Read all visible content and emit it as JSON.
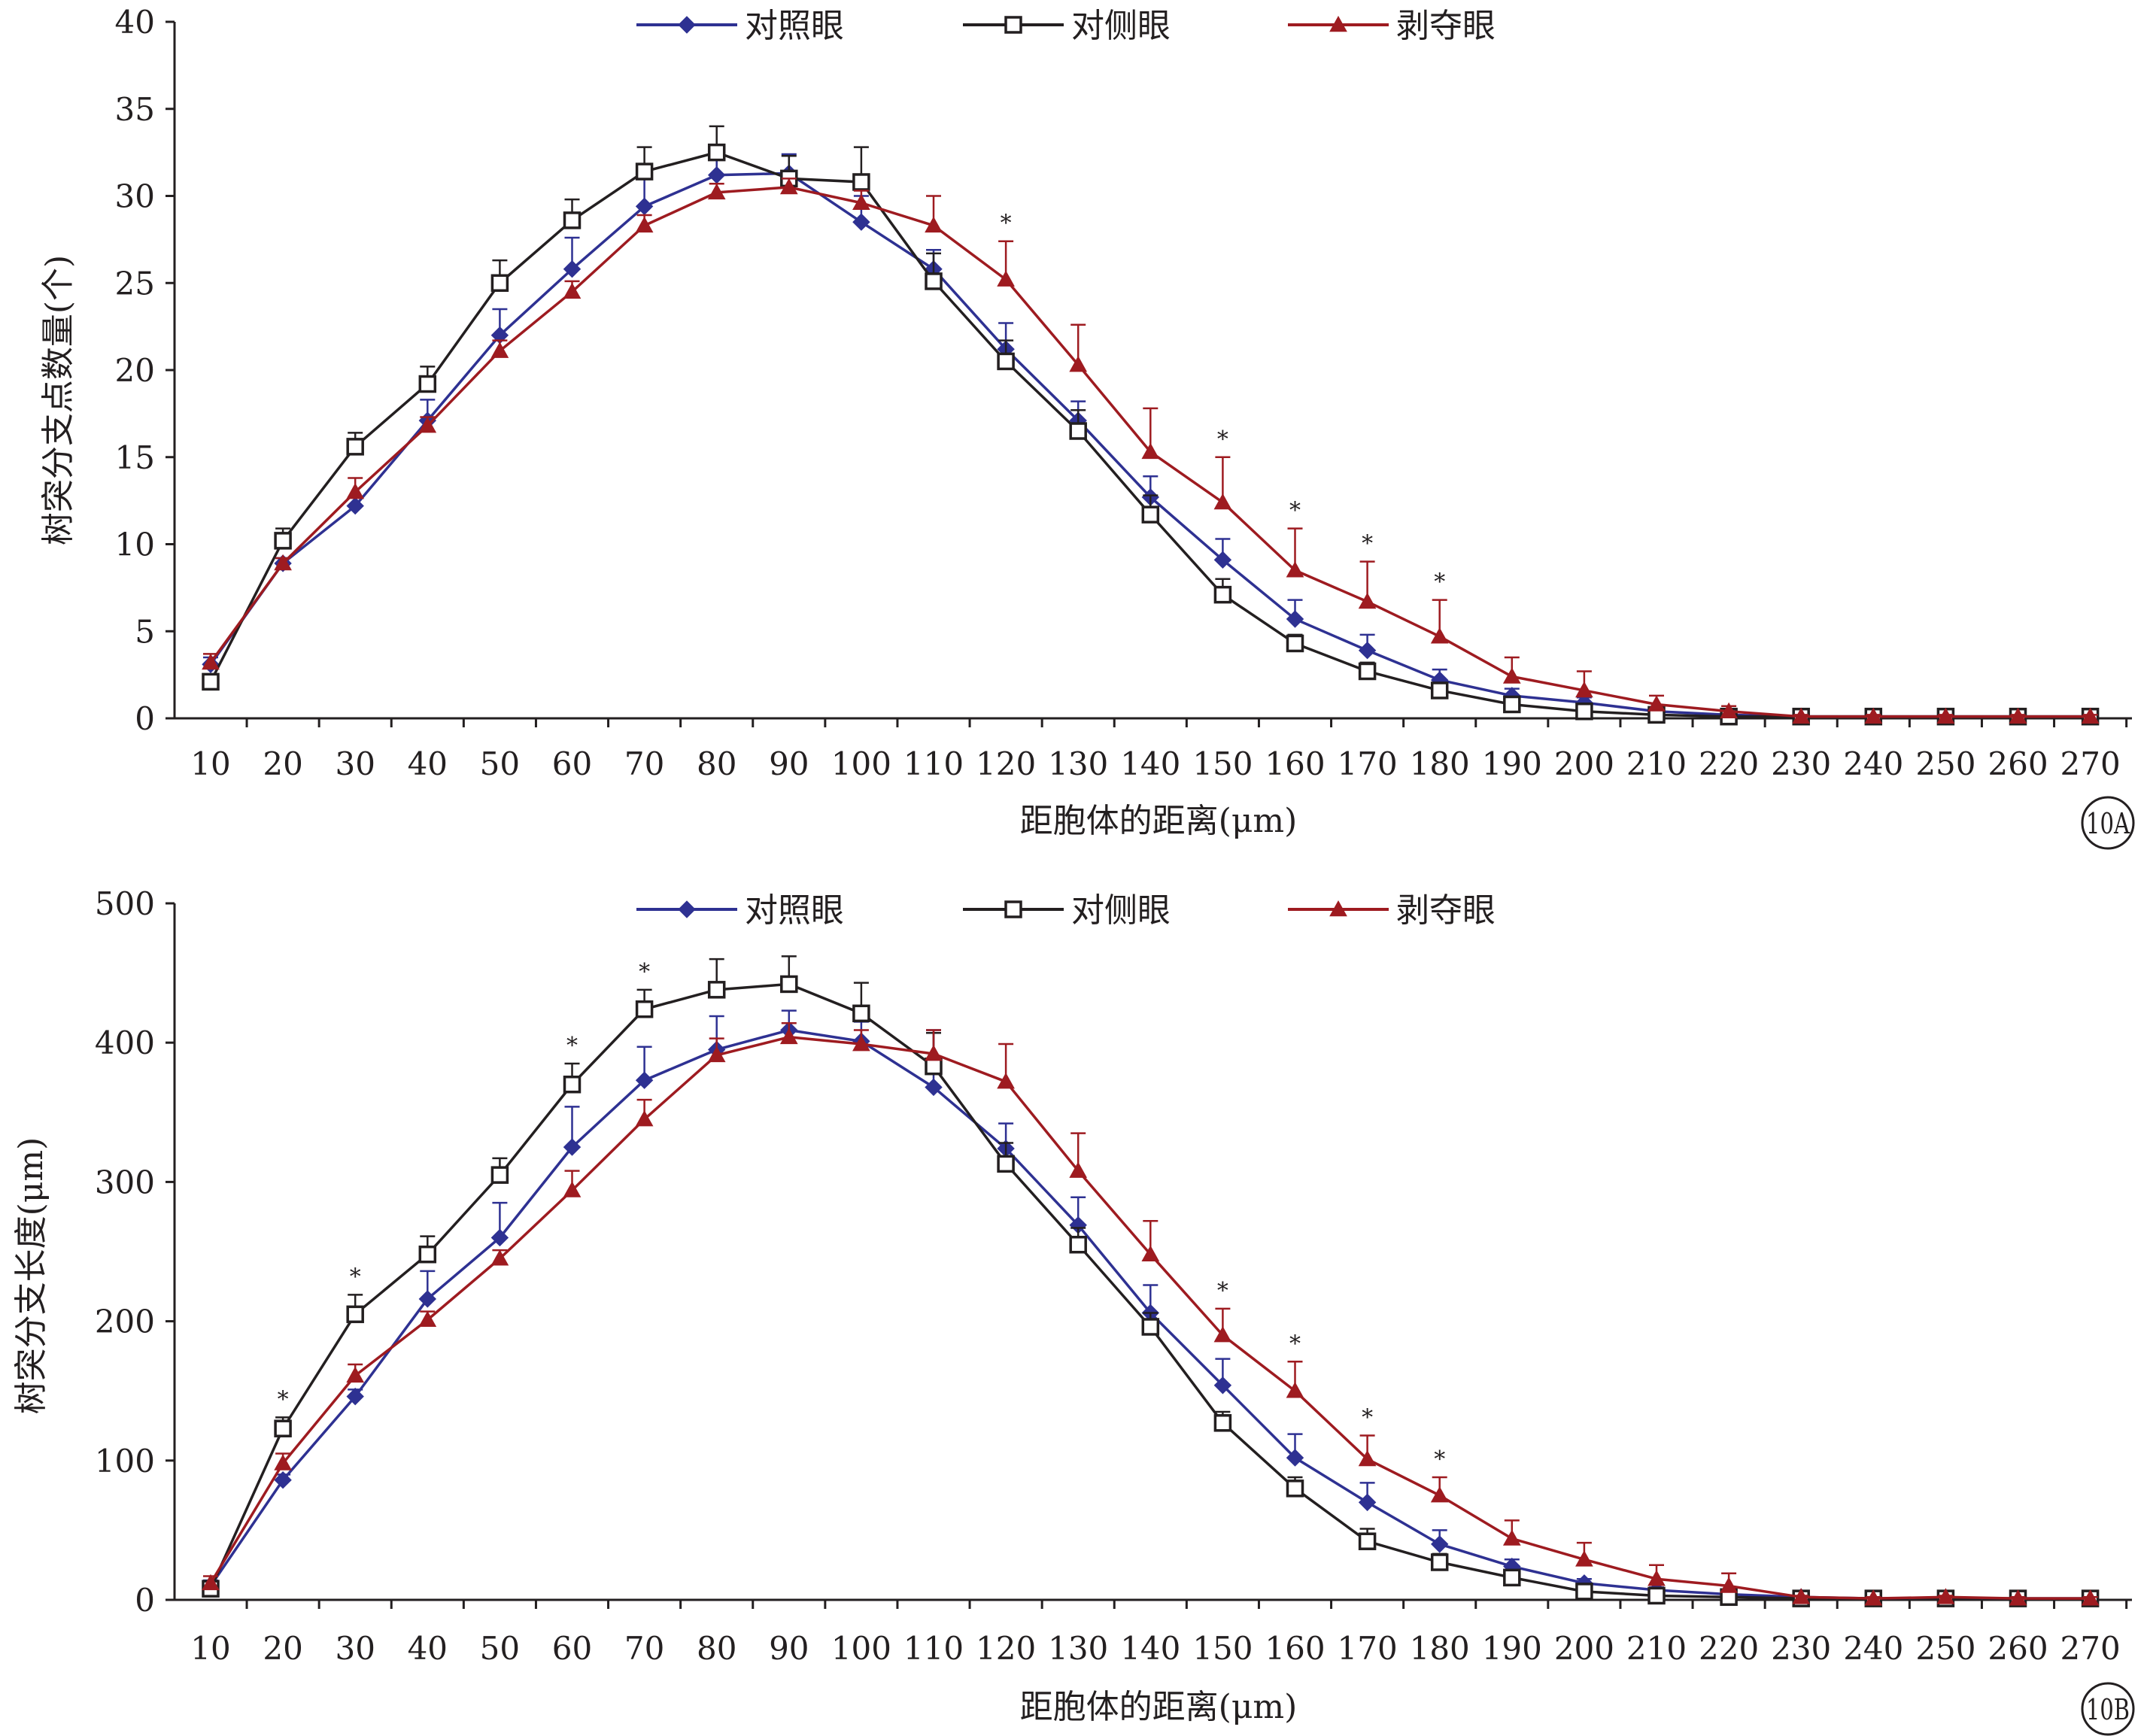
{
  "legend": {
    "control": "对照眼",
    "contralateral": "对侧眼",
    "deprived": "剥夺眼"
  },
  "colors": {
    "control": "#2e3192",
    "contralateral": "#231f20",
    "deprived": "#9e1b20",
    "axis": "#231f20"
  },
  "markers": {
    "control": "diamond",
    "contralateral": "open-square",
    "deprived": "triangle"
  },
  "panels": [
    {
      "tag": "10A",
      "ylabel": "树突分支点数量(个)",
      "xlabel": "距胞体的距离(μm)"
    },
    {
      "tag": "10B",
      "ylabel": "树突分支长度(μm)",
      "xlabel": "距胞体的距离(μm)"
    }
  ],
  "chart_data": [
    {
      "type": "line",
      "panel": "10A",
      "xlabel": "距胞体的距离(μm)",
      "ylabel": "树突分支点数量(个)",
      "categories": [
        10,
        20,
        30,
        40,
        50,
        60,
        70,
        80,
        90,
        100,
        110,
        120,
        130,
        140,
        150,
        160,
        170,
        180,
        190,
        200,
        210,
        220,
        230,
        240,
        250,
        260,
        270
      ],
      "ylim": [
        0,
        40
      ],
      "yticks": [
        0,
        5,
        10,
        15,
        20,
        25,
        30,
        35,
        40
      ],
      "legend_position": "top",
      "grid": false,
      "series": [
        {
          "name": "对照眼",
          "key": "control",
          "values": [
            3.1,
            8.9,
            12.2,
            17.1,
            22.0,
            25.8,
            29.4,
            31.2,
            31.3,
            28.5,
            25.8,
            21.2,
            17.1,
            12.7,
            9.1,
            5.7,
            3.9,
            2.2,
            1.3,
            0.9,
            0.4,
            0.2,
            0.1,
            0.1,
            0.1,
            0.1,
            0.1
          ],
          "errors": [
            0.4,
            0.3,
            0.5,
            1.2,
            1.5,
            1.8,
            1.6,
            1.3,
            1.1,
            1.5,
            1.1,
            1.5,
            1.1,
            1.2,
            1.2,
            1.1,
            0.9,
            0.6,
            0.4,
            0.3,
            0.2,
            0.1,
            0.1,
            0.1,
            0.1,
            0.1,
            0.1
          ]
        },
        {
          "name": "对侧眼",
          "key": "contralateral",
          "values": [
            2.1,
            10.2,
            15.6,
            19.2,
            25.0,
            28.6,
            31.4,
            32.5,
            31.0,
            30.8,
            25.1,
            20.5,
            16.5,
            11.7,
            7.1,
            4.3,
            2.7,
            1.6,
            0.8,
            0.4,
            0.2,
            0.1,
            0.1,
            0.1,
            0.1,
            0.1,
            0.1
          ],
          "errors": [
            0.3,
            0.7,
            0.8,
            1.0,
            1.3,
            1.2,
            1.4,
            1.5,
            1.3,
            2.0,
            1.6,
            1.2,
            1.2,
            1.1,
            0.9,
            0.5,
            0.5,
            0.4,
            0.2,
            0.2,
            0.1,
            0.1,
            0.1,
            0.1,
            0.1,
            0.1,
            0.1
          ]
        },
        {
          "name": "剥夺眼",
          "key": "deprived",
          "values": [
            3.2,
            8.9,
            13.0,
            16.8,
            21.1,
            24.5,
            28.3,
            30.2,
            30.5,
            29.6,
            28.3,
            25.2,
            20.3,
            15.3,
            12.4,
            8.5,
            6.7,
            4.7,
            2.4,
            1.6,
            0.8,
            0.4,
            0.1,
            0.1,
            0.1,
            0.1,
            0.1
          ],
          "errors": [
            0.5,
            0.3,
            0.8,
            0.5,
            0.6,
            0.6,
            0.6,
            0.5,
            0.5,
            0.7,
            1.7,
            2.2,
            2.3,
            2.5,
            2.6,
            2.4,
            2.3,
            2.1,
            1.1,
            1.1,
            0.5,
            0.3,
            0.1,
            0.1,
            0.1,
            0.1,
            0.1
          ]
        }
      ],
      "significance": [
        120,
        150,
        160,
        170,
        180
      ]
    },
    {
      "type": "line",
      "panel": "10B",
      "xlabel": "距胞体的距离(μm)",
      "ylabel": "树突分支长度(μm)",
      "categories": [
        10,
        20,
        30,
        40,
        50,
        60,
        70,
        80,
        90,
        100,
        110,
        120,
        130,
        140,
        150,
        160,
        170,
        180,
        190,
        200,
        210,
        220,
        230,
        240,
        250,
        260,
        270
      ],
      "ylim": [
        0,
        500
      ],
      "yticks": [
        0,
        100,
        200,
        300,
        400,
        500
      ],
      "legend_position": "top",
      "grid": false,
      "series": [
        {
          "name": "对照眼",
          "key": "control",
          "values": [
            10,
            86,
            146,
            216,
            260,
            325,
            373,
            395,
            409,
            401,
            368,
            324,
            269,
            206,
            154,
            102,
            70,
            40,
            24,
            12,
            7,
            4,
            2,
            1,
            1,
            1,
            1
          ],
          "errors": [
            4,
            4,
            5,
            20,
            25,
            29,
            24,
            24,
            14,
            14,
            41,
            18,
            20,
            20,
            19,
            17,
            14,
            10,
            5,
            3,
            2,
            1,
            1,
            1,
            1,
            1,
            1
          ]
        },
        {
          "name": "对侧眼",
          "key": "contralateral",
          "values": [
            8,
            123,
            205,
            248,
            305,
            370,
            424,
            438,
            442,
            421,
            383,
            313,
            255,
            196,
            127,
            80,
            42,
            27,
            16,
            6,
            3,
            2,
            1,
            1,
            1,
            1,
            1
          ],
          "errors": [
            3,
            8,
            14,
            13,
            12,
            15,
            14,
            22,
            20,
            22,
            24,
            15,
            12,
            10,
            8,
            8,
            9,
            6,
            4,
            2,
            1,
            1,
            1,
            1,
            1,
            1,
            1
          ]
        },
        {
          "name": "剥夺眼",
          "key": "deprived",
          "values": [
            12,
            98,
            161,
            201,
            245,
            294,
            345,
            391,
            404,
            399,
            392,
            372,
            308,
            248,
            190,
            150,
            101,
            75,
            44,
            29,
            15,
            10,
            2,
            1,
            2,
            1,
            1
          ],
          "errors": [
            5,
            7,
            8,
            6,
            6,
            14,
            14,
            12,
            10,
            10,
            17,
            27,
            27,
            24,
            19,
            21,
            17,
            13,
            13,
            12,
            10,
            9,
            1,
            1,
            1,
            1,
            1
          ]
        }
      ],
      "significance": [
        20,
        30,
        60,
        70,
        150,
        160,
        170,
        180
      ]
    }
  ]
}
